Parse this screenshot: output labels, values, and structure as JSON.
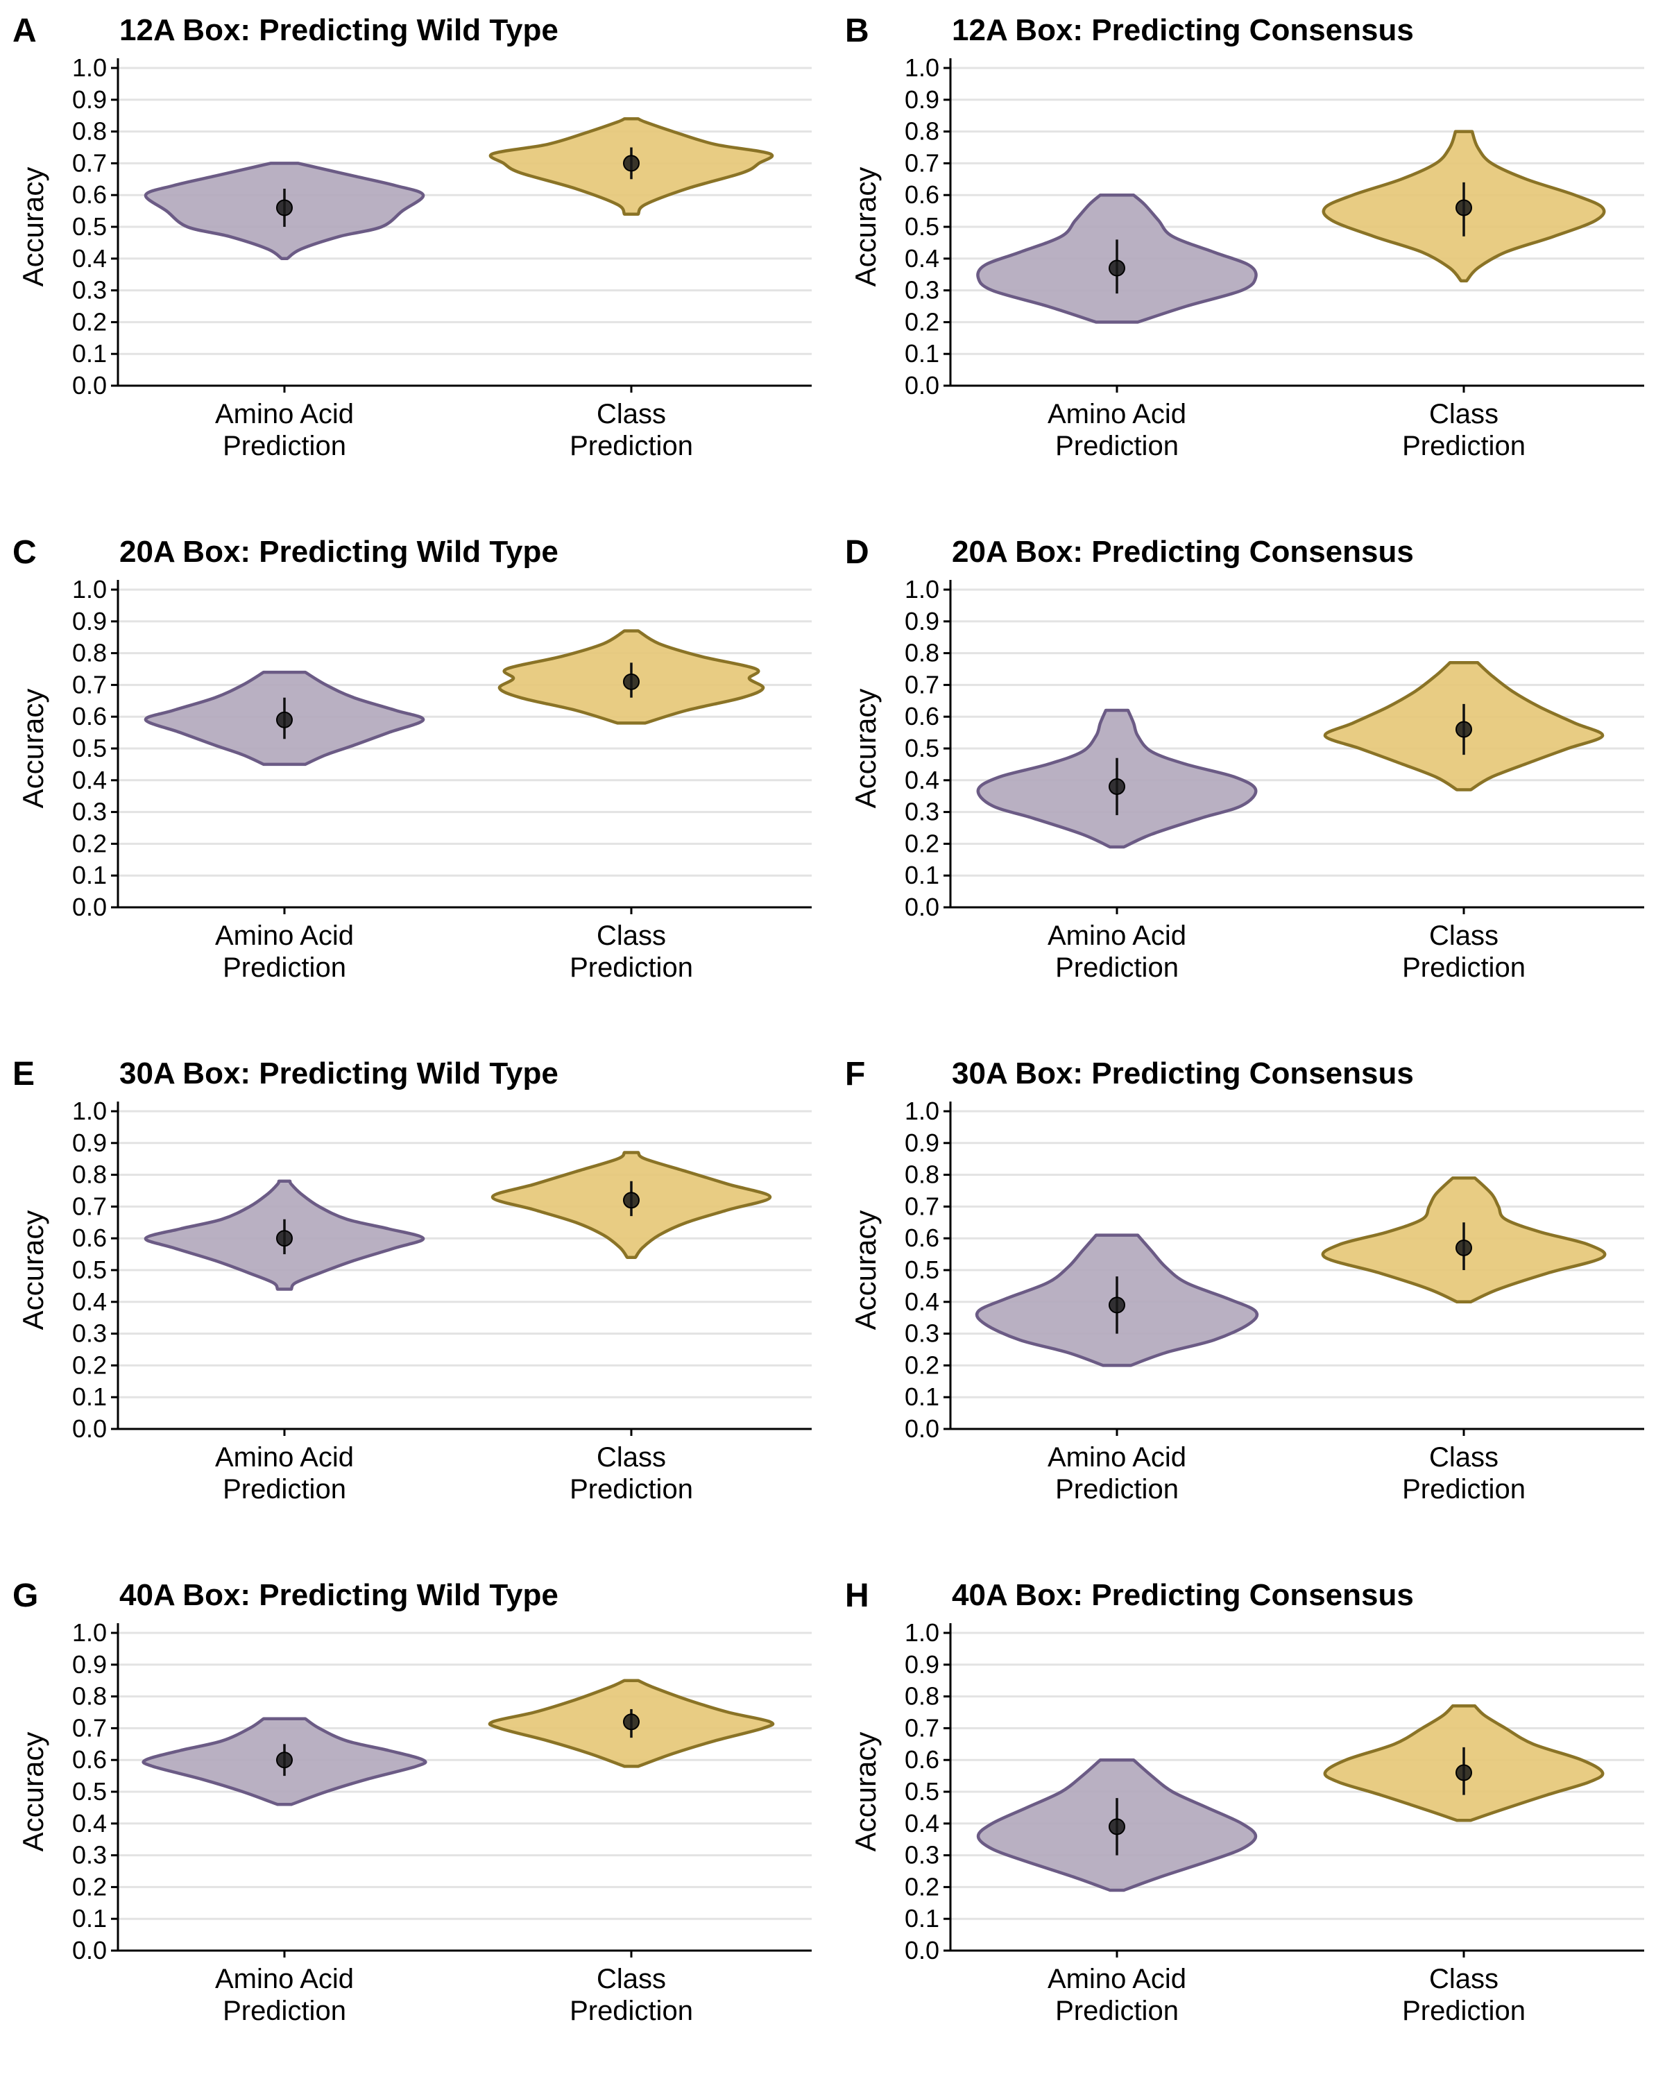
{
  "colors": {
    "purple_fill": "#b3a9bd",
    "purple_line": "#6b5b85",
    "gold_fill": "#e6c878",
    "gold_line": "#8a7326",
    "grid": "#e3e3e3"
  },
  "chart_data": [
    {
      "panel": "A",
      "title": "12A Box: Predicting Wild Type",
      "type": "violin",
      "ylabel": "Accuracy",
      "ylim": [
        0,
        1
      ],
      "yticks": [
        "0.0",
        "0.1",
        "0.2",
        "0.3",
        "0.4",
        "0.5",
        "0.6",
        "0.7",
        "0.8",
        "0.9",
        "1.0"
      ],
      "grid": true,
      "categories": [
        [
          "Amino Acid",
          "Prediction"
        ],
        [
          "Class",
          "Prediction"
        ]
      ],
      "series": [
        {
          "profile": [
            [
              0.4,
              0.02
            ],
            [
              0.43,
              0.12
            ],
            [
              0.47,
              0.4
            ],
            [
              0.5,
              0.7
            ],
            [
              0.55,
              0.85
            ],
            [
              0.6,
              1.0
            ],
            [
              0.63,
              0.8
            ],
            [
              0.66,
              0.5
            ],
            [
              0.69,
              0.2
            ],
            [
              0.7,
              0.1
            ]
          ],
          "mean": 0.56,
          "sd_low": 0.5,
          "sd_high": 0.62
        },
        {
          "profile": [
            [
              0.54,
              0.05
            ],
            [
              0.57,
              0.1
            ],
            [
              0.62,
              0.4
            ],
            [
              0.67,
              0.8
            ],
            [
              0.7,
              0.92
            ],
            [
              0.73,
              1.0
            ],
            [
              0.76,
              0.6
            ],
            [
              0.8,
              0.3
            ],
            [
              0.83,
              0.1
            ],
            [
              0.84,
              0.05
            ]
          ],
          "mean": 0.7,
          "sd_low": 0.65,
          "sd_high": 0.75
        }
      ]
    },
    {
      "panel": "B",
      "title": "12A Box: Predicting Consensus",
      "type": "violin",
      "ylabel": "Accuracy",
      "ylim": [
        0,
        1
      ],
      "yticks": [
        "0.0",
        "0.1",
        "0.2",
        "0.3",
        "0.4",
        "0.5",
        "0.6",
        "0.7",
        "0.8",
        "0.9",
        "1.0"
      ],
      "grid": true,
      "categories": [
        [
          "Amino Acid",
          "Prediction"
        ],
        [
          "Class",
          "Prediction"
        ]
      ],
      "series": [
        {
          "profile": [
            [
              0.2,
              0.15
            ],
            [
              0.25,
              0.5
            ],
            [
              0.3,
              0.9
            ],
            [
              0.34,
              1.0
            ],
            [
              0.38,
              0.95
            ],
            [
              0.42,
              0.7
            ],
            [
              0.47,
              0.4
            ],
            [
              0.52,
              0.3
            ],
            [
              0.57,
              0.2
            ],
            [
              0.6,
              0.12
            ]
          ],
          "mean": 0.37,
          "sd_low": 0.29,
          "sd_high": 0.46
        },
        {
          "profile": [
            [
              0.33,
              0.02
            ],
            [
              0.37,
              0.1
            ],
            [
              0.42,
              0.3
            ],
            [
              0.47,
              0.65
            ],
            [
              0.52,
              0.95
            ],
            [
              0.56,
              1.0
            ],
            [
              0.6,
              0.8
            ],
            [
              0.65,
              0.45
            ],
            [
              0.7,
              0.2
            ],
            [
              0.75,
              0.1
            ],
            [
              0.8,
              0.06
            ]
          ],
          "mean": 0.56,
          "sd_low": 0.47,
          "sd_high": 0.64
        }
      ]
    },
    {
      "panel": "C",
      "title": "20A Box: Predicting Wild Type",
      "type": "violin",
      "ylabel": "Accuracy",
      "ylim": [
        0,
        1
      ],
      "yticks": [
        "0.0",
        "0.1",
        "0.2",
        "0.3",
        "0.4",
        "0.5",
        "0.6",
        "0.7",
        "0.8",
        "0.9",
        "1.0"
      ],
      "grid": true,
      "categories": [
        [
          "Amino Acid",
          "Prediction"
        ],
        [
          "Class",
          "Prediction"
        ]
      ],
      "series": [
        {
          "profile": [
            [
              0.45,
              0.15
            ],
            [
              0.48,
              0.3
            ],
            [
              0.51,
              0.5
            ],
            [
              0.55,
              0.75
            ],
            [
              0.59,
              1.0
            ],
            [
              0.62,
              0.8
            ],
            [
              0.66,
              0.5
            ],
            [
              0.7,
              0.3
            ],
            [
              0.74,
              0.15
            ]
          ],
          "mean": 0.59,
          "sd_low": 0.53,
          "sd_high": 0.66
        },
        {
          "profile": [
            [
              0.58,
              0.1
            ],
            [
              0.62,
              0.4
            ],
            [
              0.66,
              0.8
            ],
            [
              0.69,
              0.95
            ],
            [
              0.72,
              0.85
            ],
            [
              0.75,
              0.9
            ],
            [
              0.79,
              0.5
            ],
            [
              0.83,
              0.2
            ],
            [
              0.87,
              0.05
            ]
          ],
          "mean": 0.71,
          "sd_low": 0.66,
          "sd_high": 0.77
        }
      ]
    },
    {
      "panel": "D",
      "title": "20A Box: Predicting Consensus",
      "type": "violin",
      "ylabel": "Accuracy",
      "ylim": [
        0,
        1
      ],
      "yticks": [
        "0.0",
        "0.1",
        "0.2",
        "0.3",
        "0.4",
        "0.5",
        "0.6",
        "0.7",
        "0.8",
        "0.9",
        "1.0"
      ],
      "grid": true,
      "categories": [
        [
          "Amino Acid",
          "Prediction"
        ],
        [
          "Class",
          "Prediction"
        ]
      ],
      "series": [
        {
          "profile": [
            [
              0.19,
              0.05
            ],
            [
              0.23,
              0.25
            ],
            [
              0.28,
              0.6
            ],
            [
              0.32,
              0.9
            ],
            [
              0.37,
              1.0
            ],
            [
              0.41,
              0.85
            ],
            [
              0.45,
              0.5
            ],
            [
              0.49,
              0.25
            ],
            [
              0.54,
              0.15
            ],
            [
              0.58,
              0.12
            ],
            [
              0.62,
              0.08
            ]
          ],
          "mean": 0.38,
          "sd_low": 0.29,
          "sd_high": 0.47
        },
        {
          "profile": [
            [
              0.37,
              0.05
            ],
            [
              0.41,
              0.2
            ],
            [
              0.46,
              0.5
            ],
            [
              0.5,
              0.75
            ],
            [
              0.54,
              1.0
            ],
            [
              0.58,
              0.8
            ],
            [
              0.63,
              0.55
            ],
            [
              0.68,
              0.35
            ],
            [
              0.73,
              0.2
            ],
            [
              0.77,
              0.1
            ]
          ],
          "mean": 0.56,
          "sd_low": 0.48,
          "sd_high": 0.64
        }
      ]
    },
    {
      "panel": "E",
      "title": "30A Box: Predicting Wild Type",
      "type": "violin",
      "ylabel": "Accuracy",
      "ylim": [
        0,
        1
      ],
      "yticks": [
        "0.0",
        "0.1",
        "0.2",
        "0.3",
        "0.4",
        "0.5",
        "0.6",
        "0.7",
        "0.8",
        "0.9",
        "1.0"
      ],
      "grid": true,
      "categories": [
        [
          "Amino Acid",
          "Prediction"
        ],
        [
          "Class",
          "Prediction"
        ]
      ],
      "series": [
        {
          "profile": [
            [
              0.44,
              0.05
            ],
            [
              0.46,
              0.08
            ],
            [
              0.49,
              0.25
            ],
            [
              0.53,
              0.5
            ],
            [
              0.57,
              0.8
            ],
            [
              0.6,
              1.0
            ],
            [
              0.63,
              0.75
            ],
            [
              0.66,
              0.45
            ],
            [
              0.7,
              0.25
            ],
            [
              0.74,
              0.12
            ],
            [
              0.77,
              0.05
            ],
            [
              0.78,
              0.04
            ]
          ],
          "mean": 0.6,
          "sd_low": 0.55,
          "sd_high": 0.66
        },
        {
          "profile": [
            [
              0.54,
              0.03
            ],
            [
              0.57,
              0.08
            ],
            [
              0.61,
              0.2
            ],
            [
              0.65,
              0.4
            ],
            [
              0.69,
              0.7
            ],
            [
              0.73,
              1.0
            ],
            [
              0.77,
              0.7
            ],
            [
              0.81,
              0.4
            ],
            [
              0.85,
              0.1
            ],
            [
              0.87,
              0.05
            ]
          ],
          "mean": 0.72,
          "sd_low": 0.67,
          "sd_high": 0.78
        }
      ]
    },
    {
      "panel": "F",
      "title": "30A Box: Predicting Consensus",
      "type": "violin",
      "ylabel": "Accuracy",
      "ylim": [
        0,
        1
      ],
      "yticks": [
        "0.0",
        "0.1",
        "0.2",
        "0.3",
        "0.4",
        "0.5",
        "0.6",
        "0.7",
        "0.8",
        "0.9",
        "1.0"
      ],
      "grid": true,
      "categories": [
        [
          "Amino Acid",
          "Prediction"
        ],
        [
          "Class",
          "Prediction"
        ]
      ],
      "series": [
        {
          "profile": [
            [
              0.2,
              0.1
            ],
            [
              0.24,
              0.35
            ],
            [
              0.28,
              0.7
            ],
            [
              0.33,
              0.95
            ],
            [
              0.37,
              1.0
            ],
            [
              0.41,
              0.8
            ],
            [
              0.46,
              0.5
            ],
            [
              0.51,
              0.35
            ],
            [
              0.56,
              0.25
            ],
            [
              0.61,
              0.15
            ]
          ],
          "mean": 0.39,
          "sd_low": 0.3,
          "sd_high": 0.48
        },
        {
          "profile": [
            [
              0.4,
              0.05
            ],
            [
              0.44,
              0.25
            ],
            [
              0.49,
              0.6
            ],
            [
              0.54,
              1.0
            ],
            [
              0.58,
              0.9
            ],
            [
              0.62,
              0.55
            ],
            [
              0.66,
              0.3
            ],
            [
              0.7,
              0.25
            ],
            [
              0.74,
              0.2
            ],
            [
              0.79,
              0.08
            ]
          ],
          "mean": 0.57,
          "sd_low": 0.5,
          "sd_high": 0.65
        }
      ]
    },
    {
      "panel": "G",
      "title": "40A Box: Predicting Wild Type",
      "type": "violin",
      "ylabel": "Accuracy",
      "ylim": [
        0,
        1
      ],
      "yticks": [
        "0.0",
        "0.1",
        "0.2",
        "0.3",
        "0.4",
        "0.5",
        "0.6",
        "0.7",
        "0.8",
        "0.9",
        "1.0"
      ],
      "grid": true,
      "categories": [
        [
          "Amino Acid",
          "Prediction"
        ],
        [
          "Class",
          "Prediction"
        ]
      ],
      "series": [
        {
          "profile": [
            [
              0.46,
              0.05
            ],
            [
              0.5,
              0.3
            ],
            [
              0.54,
              0.6
            ],
            [
              0.58,
              0.95
            ],
            [
              0.6,
              1.0
            ],
            [
              0.63,
              0.75
            ],
            [
              0.66,
              0.45
            ],
            [
              0.7,
              0.25
            ],
            [
              0.73,
              0.15
            ]
          ],
          "mean": 0.6,
          "sd_low": 0.55,
          "sd_high": 0.65
        },
        {
          "profile": [
            [
              0.58,
              0.05
            ],
            [
              0.62,
              0.3
            ],
            [
              0.66,
              0.6
            ],
            [
              0.7,
              0.95
            ],
            [
              0.72,
              1.0
            ],
            [
              0.75,
              0.7
            ],
            [
              0.79,
              0.4
            ],
            [
              0.83,
              0.15
            ],
            [
              0.85,
              0.05
            ]
          ],
          "mean": 0.72,
          "sd_low": 0.67,
          "sd_high": 0.76
        }
      ]
    },
    {
      "panel": "H",
      "title": "40A Box: Predicting Consensus",
      "type": "violin",
      "ylabel": "Accuracy",
      "ylim": [
        0,
        1
      ],
      "yticks": [
        "0.0",
        "0.1",
        "0.2",
        "0.3",
        "0.4",
        "0.5",
        "0.6",
        "0.7",
        "0.8",
        "0.9",
        "1.0"
      ],
      "grid": true,
      "categories": [
        [
          "Amino Acid",
          "Prediction"
        ],
        [
          "Class",
          "Prediction"
        ]
      ],
      "series": [
        {
          "profile": [
            [
              0.19,
              0.05
            ],
            [
              0.23,
              0.3
            ],
            [
              0.28,
              0.65
            ],
            [
              0.32,
              0.9
            ],
            [
              0.36,
              1.0
            ],
            [
              0.4,
              0.9
            ],
            [
              0.45,
              0.65
            ],
            [
              0.5,
              0.4
            ],
            [
              0.55,
              0.25
            ],
            [
              0.6,
              0.12
            ]
          ],
          "mean": 0.39,
          "sd_low": 0.3,
          "sd_high": 0.48
        },
        {
          "profile": [
            [
              0.41,
              0.05
            ],
            [
              0.44,
              0.25
            ],
            [
              0.49,
              0.6
            ],
            [
              0.53,
              0.9
            ],
            [
              0.56,
              1.0
            ],
            [
              0.6,
              0.85
            ],
            [
              0.65,
              0.5
            ],
            [
              0.7,
              0.3
            ],
            [
              0.74,
              0.15
            ],
            [
              0.77,
              0.08
            ]
          ],
          "mean": 0.56,
          "sd_low": 0.49,
          "sd_high": 0.64
        }
      ]
    }
  ]
}
